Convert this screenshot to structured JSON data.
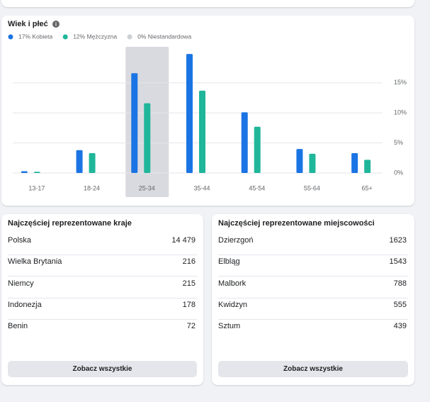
{
  "chart_data": {
    "type": "bar",
    "title": "Wiek i płeć",
    "categories": [
      "13-17",
      "18-24",
      "25-34",
      "35-44",
      "45-54",
      "55-64",
      "65+"
    ],
    "series": [
      {
        "name": "17% Kobieta",
        "color": "#1b74e4",
        "values": [
          0.3,
          3.8,
          16.6,
          19.8,
          10.1,
          4.0,
          3.3
        ]
      },
      {
        "name": "12% Mężczyzna",
        "color": "#20b69a",
        "values": [
          0.2,
          3.3,
          11.6,
          13.7,
          7.7,
          3.2,
          2.2
        ]
      },
      {
        "name": "0% Niestandardowa",
        "color": "#cdd0d4",
        "values": [
          0,
          0,
          0,
          0,
          0,
          0,
          0
        ]
      }
    ],
    "ylim": [
      0,
      21
    ],
    "yticks": [
      {
        "value": 0,
        "label": "0%"
      },
      {
        "value": 5,
        "label": "5%"
      },
      {
        "value": 10,
        "label": "10%"
      },
      {
        "value": 15,
        "label": "15%"
      }
    ],
    "grid": true,
    "legend": "top-left",
    "highlight": "25-34"
  },
  "countries": {
    "title": "Najczęściej reprezentowane kraje",
    "rows": [
      [
        "Polska",
        "14 479"
      ],
      [
        "Wielka Brytania",
        "216"
      ],
      [
        "Niemcy",
        "215"
      ],
      [
        "Indonezja",
        "178"
      ],
      [
        "Benin",
        "72"
      ]
    ],
    "button": "Zobacz wszystkie"
  },
  "cities": {
    "title": "Najczęściej reprezentowane miejscowości",
    "rows": [
      [
        "Dzierzgoń",
        "1623"
      ],
      [
        "Elbląg",
        "1543"
      ],
      [
        "Malbork",
        "788"
      ],
      [
        "Kwidzyn",
        "555"
      ],
      [
        "Sztum",
        "439"
      ]
    ],
    "button": "Zobacz wszystkie"
  }
}
